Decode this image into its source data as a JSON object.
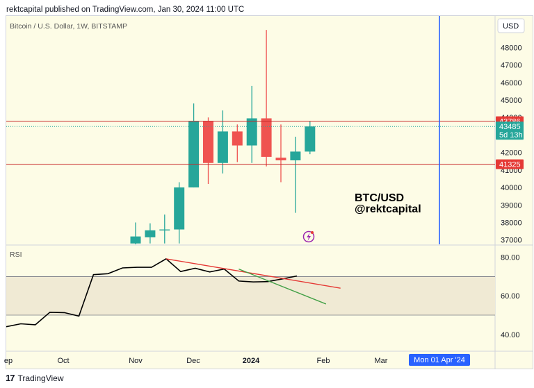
{
  "header": {
    "text": "rektcapital published on TradingView.com, Jan 30, 2024 11:00 UTC"
  },
  "footer": {
    "logo_glyph": "17",
    "brand": "TradingView"
  },
  "colors": {
    "background": "#fdfce6",
    "up": "#26a69a",
    "down": "#ef5350",
    "blue_line": "#2962ff",
    "rsi_line": "#000000",
    "rsi_band": "#f0ead4",
    "red_line": "#e53935",
    "green_line": "#43a047"
  },
  "chart_data": [
    {
      "type": "candlestick",
      "title": "Bitcoin / U.S. Dollar, 1W, BITSTAMP",
      "currency_button": "USD",
      "y_ticks": [
        37000,
        38000,
        39000,
        40000,
        41000,
        42000,
        43000,
        44000,
        45000,
        46000,
        47000,
        48000
      ],
      "ylim": [
        36750,
        49800
      ],
      "x_ticks": [
        "ep",
        "Oct",
        "Nov",
        "Dec",
        "2024",
        "Feb",
        "Mar"
      ],
      "crosshair_date": "Mon 01 Apr '24",
      "candles": [
        {
          "open": 36800,
          "high": 38000,
          "low": 36750,
          "close": 37200
        },
        {
          "open": 37150,
          "high": 37950,
          "low": 36800,
          "close": 37550
        },
        {
          "open": 37550,
          "high": 38450,
          "low": 36800,
          "close": 37600
        },
        {
          "open": 37600,
          "high": 40300,
          "low": 36800,
          "close": 40000
        },
        {
          "open": 40000,
          "high": 44800,
          "low": 40000,
          "close": 43800
        },
        {
          "open": 43800,
          "high": 44000,
          "low": 40200,
          "close": 41400
        },
        {
          "open": 41400,
          "high": 44400,
          "low": 40800,
          "close": 43200
        },
        {
          "open": 43200,
          "high": 43600,
          "low": 41450,
          "close": 42400
        },
        {
          "open": 42400,
          "high": 45800,
          "low": 41400,
          "close": 43950
        },
        {
          "open": 43950,
          "high": 49000,
          "low": 41200,
          "close": 41750
        },
        {
          "open": 41700,
          "high": 43600,
          "low": 40300,
          "close": 41550
        },
        {
          "open": 41550,
          "high": 42900,
          "low": 38550,
          "close": 42050
        },
        {
          "open": 42050,
          "high": 43786,
          "low": 41900,
          "close": 43485
        }
      ],
      "horizontal_levels": [
        {
          "value": 43786,
          "label": "43786"
        },
        {
          "value": 41325,
          "label": "41325"
        }
      ],
      "last_price": {
        "value": 43485,
        "label": "43485",
        "countdown": "5d 13h"
      },
      "annotation": {
        "line1": "BTC/USD",
        "line2": "@rektcapital"
      }
    },
    {
      "type": "line",
      "title": "RSI",
      "y_ticks": [
        "40.00",
        "60.00",
        "80.00"
      ],
      "ylim": [
        31.3,
        86
      ],
      "band": [
        50,
        70
      ],
      "values": [
        44,
        45.5,
        45,
        51.5,
        51.3,
        49.5,
        71,
        71.5,
        74.5,
        74.8,
        74.8,
        79.2,
        72.6,
        74.3,
        72.4,
        73.9,
        67.7,
        67.2,
        67.4,
        68.8,
        70.3
      ],
      "trendlines": [
        {
          "name": "red",
          "from": [
            11,
            79.2
          ],
          "to": [
            23,
            64
          ]
        },
        {
          "name": "green",
          "from": [
            16,
            73.9
          ],
          "to": [
            22,
            55.8
          ]
        }
      ]
    }
  ]
}
